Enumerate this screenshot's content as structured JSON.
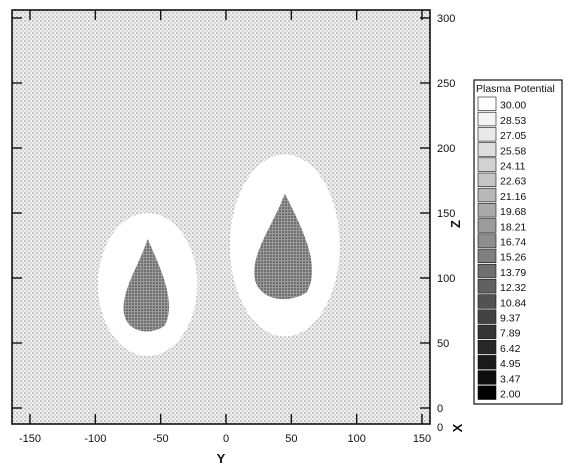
{
  "chart_data": {
    "type": "heatmap",
    "title": "",
    "xlabel": "Y",
    "ylabel": "Z",
    "secondary_label": "X",
    "x_range": [
      -160,
      160
    ],
    "y_range": [
      -10,
      310
    ],
    "x_ticks": [
      -150,
      -100,
      -50,
      0,
      50,
      100,
      150
    ],
    "y_ticks": [
      0,
      50,
      100,
      150,
      200,
      250,
      300
    ],
    "bottom_right_label": "0",
    "colorbar": {
      "title": "Plasma Potential",
      "levels": [
        "30.00",
        "28.53",
        "27.05",
        "25.58",
        "24.11",
        "22.63",
        "21.16",
        "19.68",
        "18.21",
        "16.74",
        "15.26",
        "13.79",
        "12.32",
        "10.84",
        "9.37",
        "7.89",
        "6.42",
        "4.95",
        "3.47",
        "2.00"
      ],
      "colors": [
        "#ffffff",
        "#f4f4f4",
        "#e9e9e9",
        "#dedede",
        "#d2d2d2",
        "#c5c5c5",
        "#b8b8b8",
        "#aaaaaa",
        "#9c9c9c",
        "#8e8e8e",
        "#7f7f7f",
        "#707070",
        "#616161",
        "#525252",
        "#434343",
        "#353535",
        "#272727",
        "#1a1a1a",
        "#0e0e0e",
        "#000000"
      ]
    },
    "grid": false,
    "legend_position": "right",
    "features": [
      {
        "name": "left-blob",
        "center": [
          -60,
          95
        ],
        "halo_radius": [
          38,
          55
        ],
        "core_radius": [
          22,
          35
        ],
        "core_value": 6.42
      },
      {
        "name": "right-blob",
        "center": [
          45,
          125
        ],
        "halo_radius": [
          42,
          70
        ],
        "core_radius": [
          28,
          40
        ],
        "core_value": 6.42
      }
    ],
    "background_value": 16.74
  }
}
